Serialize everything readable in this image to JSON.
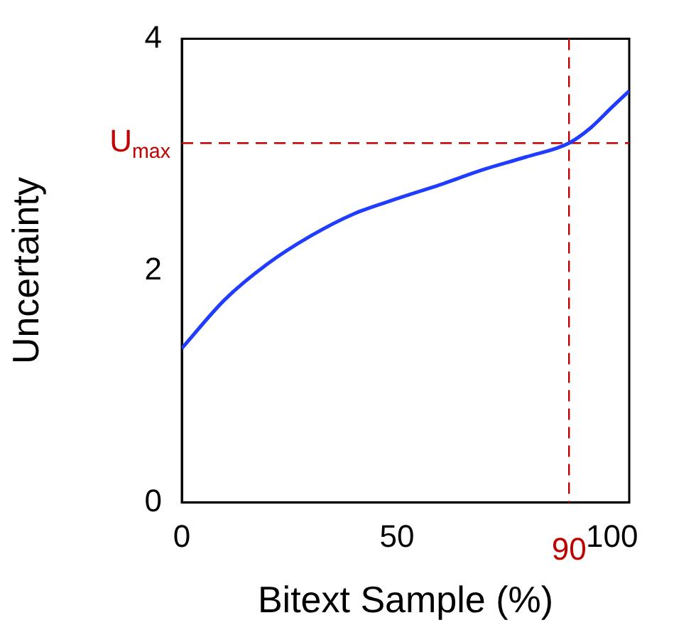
{
  "chart_data": {
    "type": "line",
    "xlabel": "Bitext Sample (%)",
    "ylabel": "Uncertainty",
    "x": [
      0,
      10,
      20,
      30,
      40,
      50,
      60,
      70,
      80,
      90,
      95,
      100,
      104
    ],
    "series": [
      {
        "color": "#1f3cff",
        "values": [
          1.33,
          1.75,
          2.06,
          2.3,
          2.49,
          2.62,
          2.74,
          2.87,
          2.98,
          3.1,
          3.23,
          3.41,
          3.55
        ]
      }
    ],
    "xlim": [
      0,
      104
    ],
    "ylim": [
      0,
      4
    ],
    "xticks": [
      0,
      50,
      100
    ],
    "yticks": [
      0,
      2,
      4
    ],
    "ref_lines": [
      {
        "axis": "y",
        "value": 3.1,
        "label": "U$_{max}$",
        "color": "#c00000",
        "line_style": "dashed"
      },
      {
        "axis": "x",
        "value": 90,
        "label": "90",
        "color": "#c00000",
        "line_style": "dashed"
      }
    ],
    "grid": false,
    "legend": false,
    "marker": "none",
    "line_style": "solid"
  }
}
